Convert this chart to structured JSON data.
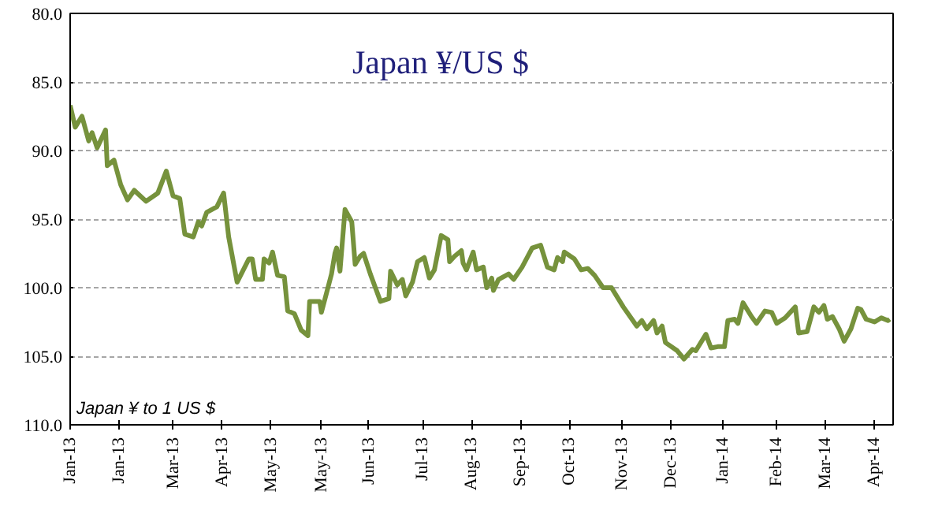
{
  "chart_data": {
    "type": "line",
    "title": "Japan ¥/US $",
    "annotations": [
      "Japan ¥ to 1 US $"
    ],
    "xlim": [
      "2013-01-02",
      "2014-05-05"
    ],
    "ylim": [
      110,
      80
    ],
    "xticks": [
      {
        "value": "2013-01-02",
        "label": "Jan-13"
      },
      {
        "value": "2013-01-31",
        "label": "Jan-13"
      },
      {
        "value": "2013-03-04",
        "label": "Mar-13"
      },
      {
        "value": "2013-04-02",
        "label": "Apr-13"
      },
      {
        "value": "2013-05-01",
        "label": "May-13"
      },
      {
        "value": "2013-05-31",
        "label": "May-13"
      },
      {
        "value": "2013-06-28",
        "label": "Jun-13"
      },
      {
        "value": "2013-07-30",
        "label": "Jul-13"
      },
      {
        "value": "2013-08-28",
        "label": "Aug-13"
      },
      {
        "value": "2013-09-26",
        "label": "Sep-13"
      },
      {
        "value": "2013-10-25",
        "label": "Oct-13"
      },
      {
        "value": "2013-11-25",
        "label": "Nov-13"
      },
      {
        "value": "2013-12-24",
        "label": "Dec-13"
      },
      {
        "value": "2014-01-24",
        "label": "Jan-14"
      },
      {
        "value": "2014-02-25",
        "label": "Feb-14"
      },
      {
        "value": "2014-03-26",
        "label": "Mar-14"
      },
      {
        "value": "2014-04-24",
        "label": "Apr-14"
      }
    ],
    "yticks": [
      {
        "value": 80,
        "label": "80.0"
      },
      {
        "value": 85,
        "label": "85.0"
      },
      {
        "value": 90,
        "label": "90.0"
      },
      {
        "value": 95,
        "label": "95.0"
      },
      {
        "value": 100,
        "label": "100.0"
      },
      {
        "value": 105,
        "label": "105.0"
      },
      {
        "value": 110,
        "label": "110.0"
      }
    ],
    "grid": "y",
    "marker": "none",
    "line_style": "solid",
    "series": [
      {
        "color": "#76923c",
        "x": [
          "2013-01-02",
          "2013-01-05",
          "2013-01-09",
          "2013-01-13",
          "2013-01-15",
          "2013-01-18",
          "2013-01-23",
          "2013-01-24",
          "2013-01-28",
          "2013-02-01",
          "2013-02-05",
          "2013-02-09",
          "2013-02-16",
          "2013-02-23",
          "2013-02-28",
          "2013-03-04",
          "2013-03-08",
          "2013-03-11",
          "2013-03-16",
          "2013-03-19",
          "2013-03-21",
          "2013-03-24",
          "2013-03-30",
          "2013-04-03",
          "2013-04-06",
          "2013-04-11",
          "2013-04-18",
          "2013-04-20",
          "2013-04-22",
          "2013-04-26",
          "2013-04-27",
          "2013-04-30",
          "2013-05-02",
          "2013-05-05",
          "2013-05-09",
          "2013-05-11",
          "2013-05-15",
          "2013-05-19",
          "2013-05-23",
          "2013-05-24",
          "2013-05-30",
          "2013-05-31",
          "2013-06-03",
          "2013-06-06",
          "2013-06-08",
          "2013-06-09",
          "2013-06-11",
          "2013-06-14",
          "2013-06-18",
          "2013-06-20",
          "2013-06-23",
          "2013-06-25",
          "2013-06-29",
          "2013-07-02",
          "2013-07-05",
          "2013-07-10",
          "2013-07-11",
          "2013-07-15",
          "2013-07-18",
          "2013-07-20",
          "2013-07-24",
          "2013-07-27",
          "2013-07-31",
          "2013-08-03",
          "2013-08-06",
          "2013-08-10",
          "2013-08-14",
          "2013-08-15",
          "2013-08-18",
          "2013-08-22",
          "2013-08-23",
          "2013-08-25",
          "2013-08-29",
          "2013-08-31",
          "2013-09-04",
          "2013-09-06",
          "2013-09-09",
          "2013-09-10",
          "2013-09-13",
          "2013-09-19",
          "2013-09-22",
          "2013-09-27",
          "2013-10-03",
          "2013-10-08",
          "2013-10-12",
          "2013-10-16",
          "2013-10-18",
          "2013-10-21",
          "2013-10-22",
          "2013-10-28",
          "2013-11-01",
          "2013-11-05",
          "2013-11-09",
          "2013-11-14",
          "2013-11-19",
          "2013-11-26",
          "2013-12-04",
          "2013-12-07",
          "2013-12-10",
          "2013-12-14",
          "2013-12-16",
          "2013-12-19",
          "2013-12-21",
          "2013-12-28",
          "2014-01-01",
          "2014-01-06",
          "2014-01-08",
          "2014-01-14",
          "2014-01-17",
          "2014-01-21",
          "2014-01-25",
          "2014-01-27",
          "2014-01-31",
          "2014-02-02",
          "2014-02-05",
          "2014-02-10",
          "2014-02-13",
          "2014-02-18",
          "2014-02-22",
          "2014-02-25",
          "2014-03-02",
          "2014-03-08",
          "2014-03-10",
          "2014-03-15",
          "2014-03-19",
          "2014-03-22",
          "2014-03-25",
          "2014-03-27",
          "2014-03-30",
          "2014-04-03",
          "2014-04-06",
          "2014-04-10",
          "2014-04-14",
          "2014-04-16",
          "2014-04-19",
          "2014-04-24",
          "2014-04-28",
          "2014-05-02",
          "2014-05-03"
        ],
        "values": [
          86.7,
          88.3,
          87.5,
          89.3,
          88.7,
          89.8,
          88.5,
          91.1,
          90.7,
          92.5,
          93.6,
          92.9,
          93.7,
          93.1,
          91.5,
          93.3,
          93.5,
          96.1,
          96.3,
          95.2,
          95.5,
          94.5,
          94.1,
          93.1,
          96.3,
          99.6,
          97.9,
          97.9,
          99.4,
          99.4,
          97.9,
          98.2,
          97.4,
          99.1,
          99.2,
          101.7,
          101.9,
          103.1,
          103.5,
          101.0,
          101.0,
          101.8,
          100.4,
          99.0,
          97.5,
          97.1,
          98.8,
          94.3,
          95.2,
          98.3,
          97.7,
          97.5,
          99.0,
          100.0,
          101.0,
          100.8,
          98.8,
          99.8,
          99.4,
          100.6,
          99.6,
          98.1,
          97.8,
          99.3,
          98.7,
          96.2,
          96.5,
          98.1,
          97.7,
          97.3,
          98.2,
          98.7,
          97.4,
          98.7,
          98.5,
          100.0,
          99.3,
          100.2,
          99.4,
          99.0,
          99.4,
          98.5,
          97.1,
          96.9,
          98.5,
          98.7,
          97.8,
          98.1,
          97.4,
          97.9,
          98.7,
          98.6,
          99.1,
          100.0,
          100.0,
          101.4,
          102.8,
          102.4,
          103.0,
          102.4,
          103.3,
          102.8,
          104.0,
          104.6,
          105.2,
          104.5,
          104.6,
          103.4,
          104.4,
          104.3,
          104.3,
          102.4,
          102.3,
          102.6,
          101.1,
          102.1,
          102.6,
          101.7,
          101.8,
          102.6,
          102.2,
          101.4,
          103.3,
          103.2,
          101.4,
          101.8,
          101.3,
          102.3,
          102.1,
          103.0,
          103.9,
          103.0,
          101.5,
          101.6,
          102.3,
          102.5,
          102.2,
          102.4,
          102.3
        ]
      }
    ]
  }
}
